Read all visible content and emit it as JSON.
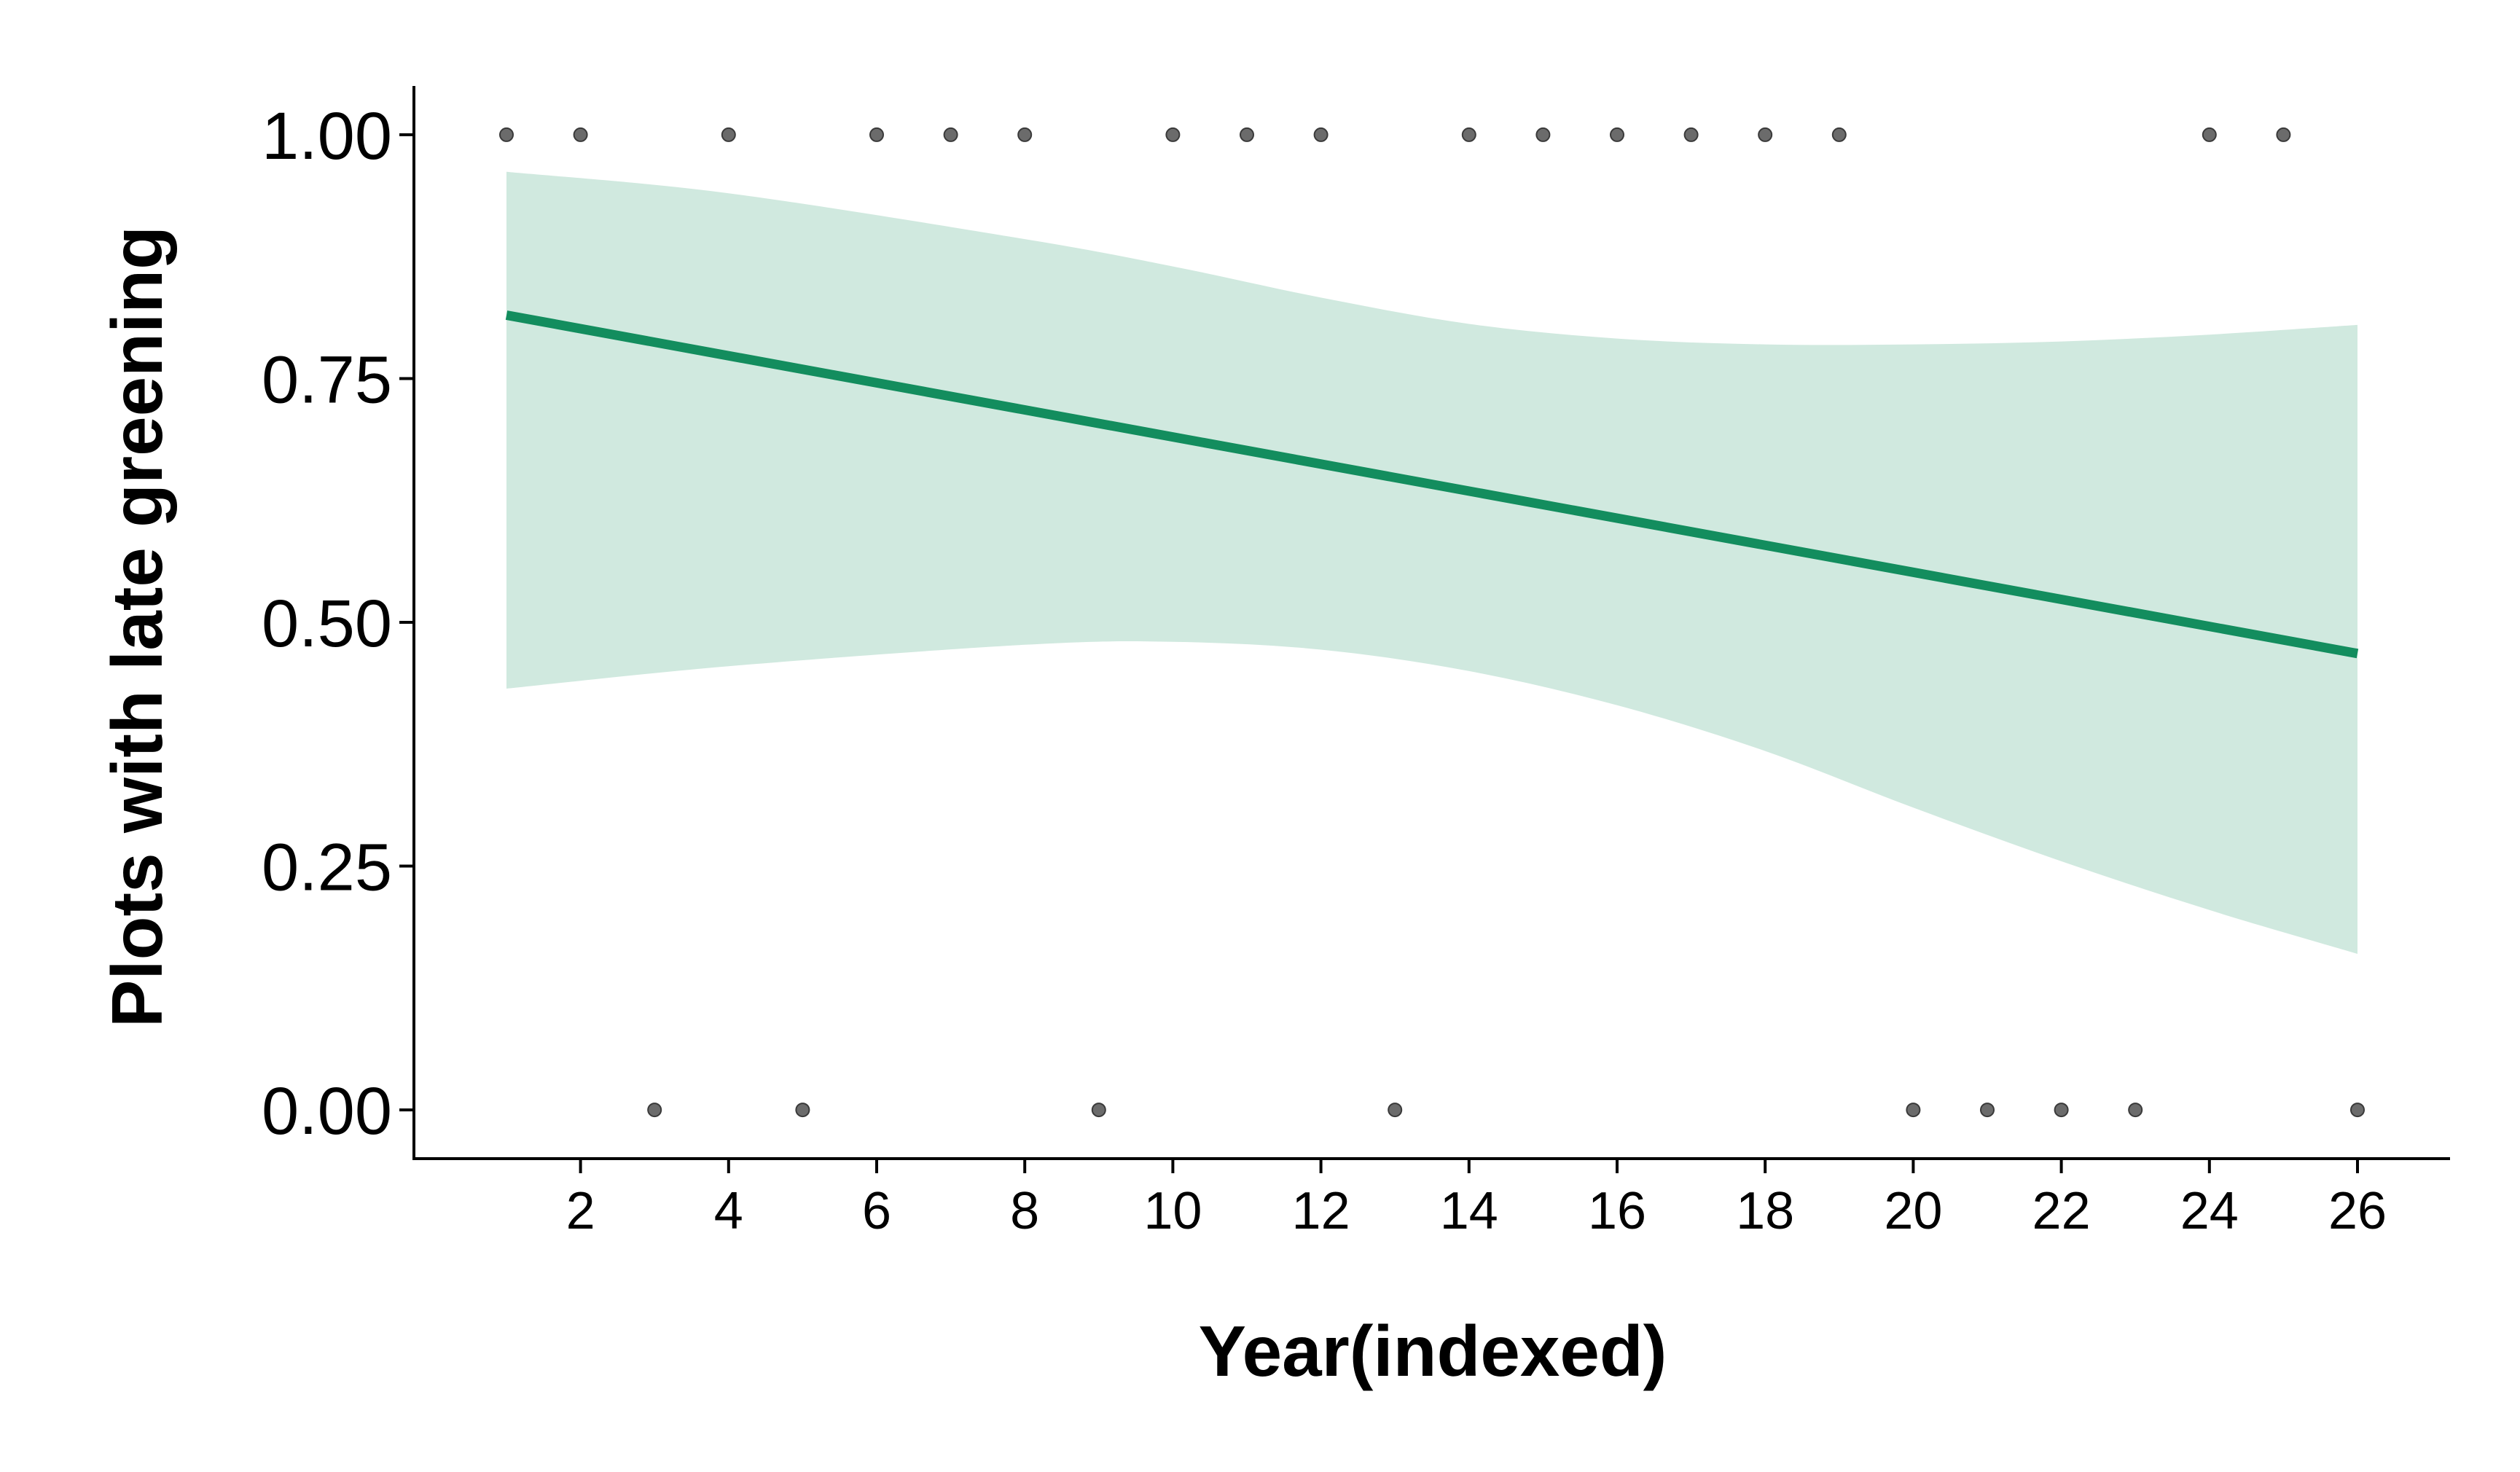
{
  "chart_data": {
    "type": "scatter",
    "xlabel": "Year(indexed)",
    "ylabel": "Plots with late greening",
    "xlim": [
      -0.25,
      27.25
    ],
    "ylim": [
      -0.05,
      1.05
    ],
    "x_ticks": [
      2,
      4,
      6,
      8,
      10,
      12,
      14,
      16,
      18,
      20,
      22,
      24,
      26
    ],
    "x_tick_labels": [
      "2",
      "4",
      "6",
      "8",
      "10",
      "12",
      "14",
      "16",
      "18",
      "20",
      "22",
      "24",
      "26"
    ],
    "y_ticks": [
      0,
      0.25,
      0.5,
      0.75,
      1
    ],
    "y_tick_labels": [
      "0.00",
      "0.25",
      "0.50",
      "0.75",
      "1.00"
    ],
    "grid": false,
    "legend": "none",
    "series": [
      {
        "type": "scatter",
        "color": "#6b6b6b",
        "points": [
          [
            1,
            1
          ],
          [
            2,
            1
          ],
          [
            3,
            0
          ],
          [
            4,
            1
          ],
          [
            5,
            0
          ],
          [
            6,
            1
          ],
          [
            7,
            1
          ],
          [
            8,
            1
          ],
          [
            9,
            0
          ],
          [
            10,
            1
          ],
          [
            11,
            1
          ],
          [
            12,
            1
          ],
          [
            13,
            0
          ],
          [
            14,
            1
          ],
          [
            15,
            1
          ],
          [
            16,
            1
          ],
          [
            17,
            1
          ],
          [
            18,
            1
          ],
          [
            19,
            1
          ],
          [
            20,
            0
          ],
          [
            21,
            0
          ],
          [
            22,
            0
          ],
          [
            23,
            0
          ],
          [
            24,
            1
          ],
          [
            25,
            1
          ],
          [
            26,
            0
          ]
        ]
      },
      {
        "type": "line",
        "color": "#138d5e",
        "x": [
          1,
          26
        ],
        "y": [
          0.815,
          0.468
        ]
      },
      {
        "type": "ribbon",
        "color": "#d0e9df",
        "x": [
          1,
          4,
          8,
          10,
          12,
          14,
          16,
          18,
          20,
          22,
          24,
          26
        ],
        "lower": [
          0.432,
          0.455,
          0.477,
          0.48,
          0.472,
          0.45,
          0.415,
          0.368,
          0.31,
          0.255,
          0.205,
          0.16
        ],
        "upper": [
          0.962,
          0.94,
          0.893,
          0.865,
          0.833,
          0.806,
          0.791,
          0.785,
          0.785,
          0.788,
          0.795,
          0.805
        ]
      }
    ]
  }
}
